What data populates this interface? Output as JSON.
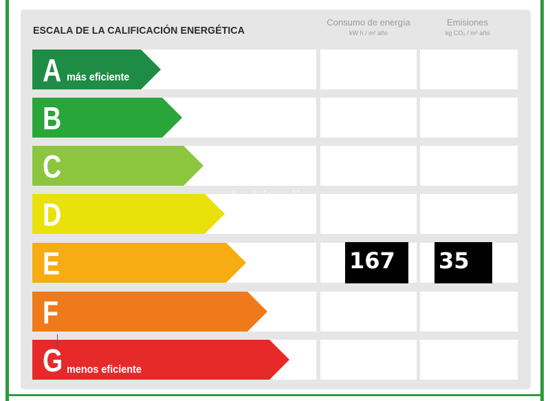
{
  "title": "ESCALA DE LA CALIFICACIÓN ENERGÉTICA",
  "columns": {
    "consumo": {
      "label": "Consumo de energía",
      "unit": "kW h / m² año"
    },
    "emisiones": {
      "label": "Emisiones",
      "unit": "kg CO₂ / m² año"
    }
  },
  "ratings": [
    {
      "letter": "A",
      "note": "más eficiente",
      "color": "#1e8c45"
    },
    {
      "letter": "B",
      "note": "",
      "color": "#29a539"
    },
    {
      "letter": "C",
      "note": "",
      "color": "#8cc63f"
    },
    {
      "letter": "D",
      "note": "",
      "color": "#e9e20a"
    },
    {
      "letter": "E",
      "note": "",
      "color": "#f6ac12"
    },
    {
      "letter": "F",
      "note": "",
      "color": "#ef7a1b"
    },
    {
      "letter": "G",
      "note": "menos eficiente",
      "color": "#e62a2a"
    }
  ],
  "current": {
    "rating": "E",
    "consumo_value": "167",
    "emisiones_value": "35"
  },
  "watermark": "habitaclia"
}
